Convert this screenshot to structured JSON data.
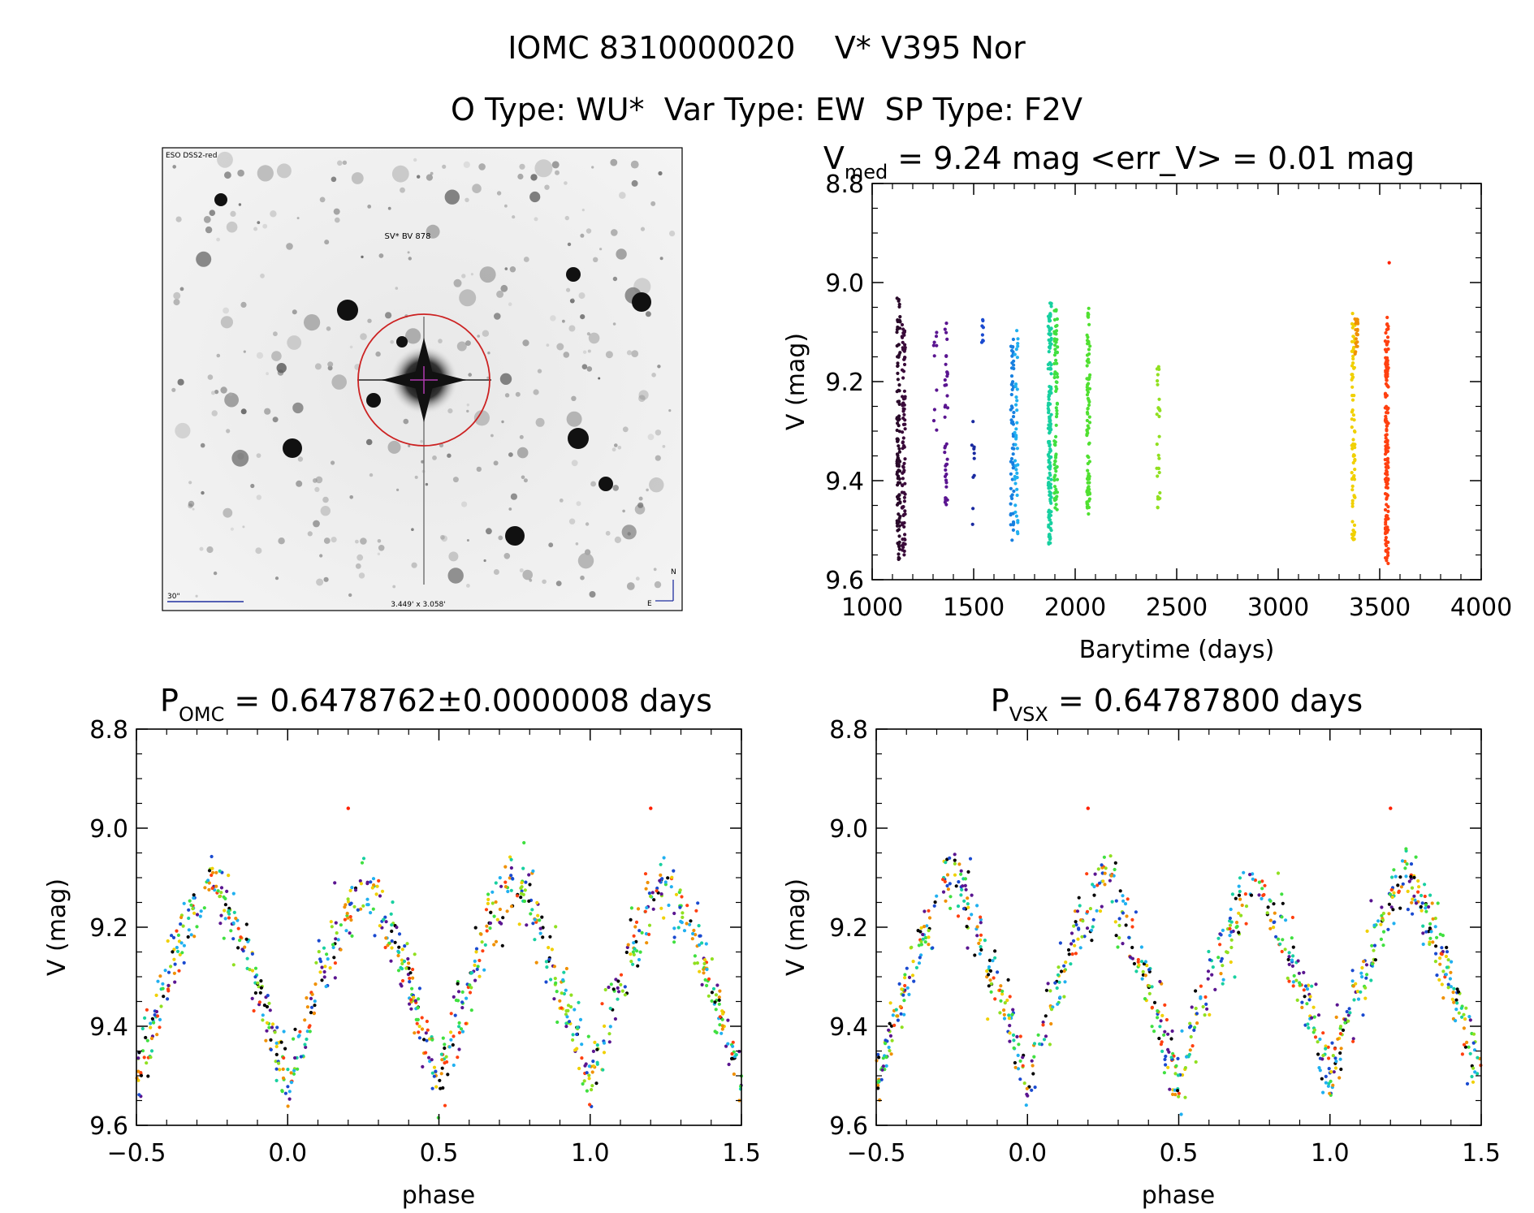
{
  "header": {
    "line1": "IOMC 8310000020    V* V395 Nor",
    "line2": "O Type: WU*  Var Type: EW  SP Type: F2V"
  },
  "finder": {
    "survey_label": "ESO DSS2-red",
    "target_label": "SV* BV 878",
    "scale_label": "30\"",
    "fov_label": "3.449' x 3.058'",
    "north_label": "N",
    "east_label": "E",
    "colors": {
      "circle": "#cc2222",
      "cross": "#b03ab0",
      "labels": "#2030a0",
      "target_label": "#cc2222"
    }
  },
  "chart_data": [
    {
      "id": "lightcurve",
      "type": "scatter",
      "title_main": "V",
      "title_sub": "med",
      "title_rest": " = 9.24 mag <err_V> = 0.01 mag",
      "xlabel": "Barytime (days)",
      "ylabel": "V (mag)",
      "xlim": [
        1000,
        4000
      ],
      "ylim": [
        9.6,
        8.8
      ],
      "xticks": [
        "1000",
        "1500",
        "2000",
        "2500",
        "3000",
        "3500",
        "4000"
      ],
      "yticks": [
        "8.8",
        "9.0",
        "9.2",
        "9.4",
        "9.6"
      ],
      "clusters": [
        {
          "x": 1130,
          "ymin": 9.03,
          "ymax": 9.56,
          "n": 110,
          "color": "#2a0a2a"
        },
        {
          "x": 1155,
          "ymin": 9.08,
          "ymax": 9.55,
          "n": 90,
          "color": "#3a0a3a"
        },
        {
          "x": 1310,
          "ymin": 9.1,
          "ymax": 9.3,
          "n": 10,
          "color": "#5a1590"
        },
        {
          "x": 1365,
          "ymin": 9.05,
          "ymax": 9.45,
          "n": 40,
          "color": "#5a1590"
        },
        {
          "x": 1495,
          "ymin": 9.28,
          "ymax": 9.5,
          "n": 10,
          "color": "#1a2aa0"
        },
        {
          "x": 1540,
          "ymin": 9.05,
          "ymax": 9.13,
          "n": 8,
          "color": "#1a4ad0"
        },
        {
          "x": 1690,
          "ymin": 9.09,
          "ymax": 9.53,
          "n": 60,
          "color": "#1880e0"
        },
        {
          "x": 1710,
          "ymin": 9.09,
          "ymax": 9.52,
          "n": 40,
          "color": "#20b0f0"
        },
        {
          "x": 1875,
          "ymin": 9.04,
          "ymax": 9.53,
          "n": 150,
          "color": "#18d0a0"
        },
        {
          "x": 1905,
          "ymin": 9.05,
          "ymax": 9.46,
          "n": 80,
          "color": "#40e040"
        },
        {
          "x": 2065,
          "ymin": 9.05,
          "ymax": 9.47,
          "n": 90,
          "color": "#50e030"
        },
        {
          "x": 2410,
          "ymin": 9.16,
          "ymax": 9.48,
          "n": 30,
          "color": "#90e020"
        },
        {
          "x": 3370,
          "ymin": 9.06,
          "ymax": 9.52,
          "n": 80,
          "color": "#f0d000"
        },
        {
          "x": 3385,
          "ymin": 9.07,
          "ymax": 9.15,
          "n": 20,
          "color": "#f09000"
        },
        {
          "x": 3535,
          "ymin": 9.07,
          "ymax": 9.57,
          "n": 160,
          "color": "#ff4010"
        },
        {
          "x": 3550,
          "ymin": 8.96,
          "ymax": 8.96,
          "n": 1,
          "color": "#ff2000"
        }
      ]
    },
    {
      "id": "phase_omc",
      "type": "scatter",
      "title_main": "P",
      "title_sub": "OMC",
      "title_rest": " = 0.6478762±0.0000008 days",
      "xlabel": "phase",
      "ylabel": "V (mag)",
      "xlim": [
        -0.5,
        1.5
      ],
      "ylim": [
        9.6,
        8.8
      ],
      "xticks": [
        "−0.5",
        "0.0",
        "0.5",
        "1.0",
        "1.5"
      ],
      "yticks": [
        "8.8",
        "9.0",
        "9.2",
        "9.4",
        "9.6"
      ],
      "curve": {
        "mean": 9.31,
        "amplitude": 0.205,
        "period_fraction": 0.5,
        "zero_phase": 0.0,
        "scatter": 0.035,
        "n_points": 900
      },
      "outliers": [
        {
          "x": 0.2,
          "y": 8.96
        },
        {
          "x": 1.2,
          "y": 8.96
        }
      ],
      "colors": [
        "#000000",
        "#5a1590",
        "#1a4ad0",
        "#20b0f0",
        "#18d0a0",
        "#40e040",
        "#90e020",
        "#f0d000",
        "#f09000",
        "#ff4010"
      ]
    },
    {
      "id": "phase_vsx",
      "type": "scatter",
      "title_main": "P",
      "title_sub": "VSX",
      "title_rest": " = 0.64787800 days",
      "xlabel": "phase",
      "ylabel": "V (mag)",
      "xlim": [
        -0.5,
        1.5
      ],
      "ylim": [
        9.6,
        8.8
      ],
      "xticks": [
        "−0.5",
        "0.0",
        "0.5",
        "1.0",
        "1.5"
      ],
      "yticks": [
        "8.8",
        "9.0",
        "9.2",
        "9.4",
        "9.6"
      ],
      "curve": {
        "mean": 9.31,
        "amplitude": 0.205,
        "period_fraction": 0.5,
        "zero_phase": 0.0,
        "scatter": 0.035,
        "n_points": 900
      },
      "outliers": [
        {
          "x": 0.2,
          "y": 8.96
        },
        {
          "x": 1.2,
          "y": 8.96
        }
      ],
      "colors": [
        "#000000",
        "#5a1590",
        "#1a4ad0",
        "#20b0f0",
        "#18d0a0",
        "#40e040",
        "#90e020",
        "#f0d000",
        "#f09000",
        "#ff4010"
      ]
    }
  ]
}
